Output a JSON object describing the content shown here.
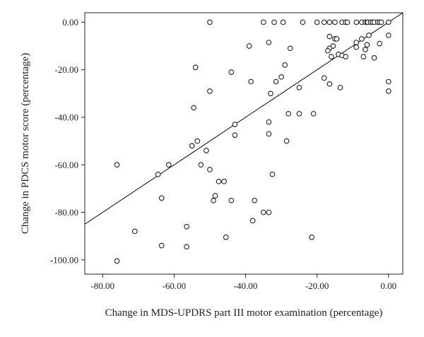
{
  "chart_data": {
    "type": "scatter",
    "title": "",
    "xlabel": "Change in MDS-UPDRS part III motor examination (percentage)",
    "ylabel": "Change in PDCS motor score (percentage)",
    "xlim": [
      -85,
      4
    ],
    "ylim": [
      -106,
      4
    ],
    "xticks": [
      -80,
      -60,
      -40,
      -20,
      0
    ],
    "xtick_labels": [
      "-80.00",
      "-60.00",
      "-40.00",
      "-20.00",
      "0.00"
    ],
    "yticks": [
      0,
      -20,
      -40,
      -60,
      -80,
      -100
    ],
    "ytick_labels": [
      "0.00",
      "-20.00",
      "-40.00",
      "-60.00",
      "-80.00",
      "-100.00"
    ],
    "grid": false,
    "reference_line": "identity (y = x)",
    "colors": {
      "marker": "#222222",
      "axis": "#222222",
      "line": "#000000"
    },
    "series": [
      {
        "marker": "open-circle",
        "points": [
          [
            -50,
            0
          ],
          [
            -35,
            0
          ],
          [
            -32,
            0
          ],
          [
            -29.5,
            0
          ],
          [
            -24,
            0
          ],
          [
            -20,
            0
          ],
          [
            -18,
            0
          ],
          [
            -16.5,
            0
          ],
          [
            -15,
            0
          ],
          [
            -13,
            0
          ],
          [
            -12,
            0
          ],
          [
            -11.5,
            0
          ],
          [
            -9,
            0
          ],
          [
            -7.5,
            0
          ],
          [
            -6.5,
            0
          ],
          [
            -6,
            0
          ],
          [
            -5.8,
            0
          ],
          [
            -5,
            0
          ],
          [
            -4.5,
            0
          ],
          [
            -4,
            0
          ],
          [
            -3,
            0
          ],
          [
            -2.5,
            0
          ],
          [
            -2,
            0
          ],
          [
            0,
            0
          ],
          [
            -16.5,
            -6
          ],
          [
            -15,
            -7
          ],
          [
            -14.5,
            -7
          ],
          [
            -7.5,
            -7
          ],
          [
            -9,
            -8.5
          ],
          [
            -5.5,
            -5.5
          ],
          [
            -2.5,
            -9
          ],
          [
            0,
            -5.5
          ],
          [
            -33.5,
            -8.5
          ],
          [
            -39,
            -10
          ],
          [
            -15.5,
            -10
          ],
          [
            -16.5,
            -11
          ],
          [
            -17,
            -12
          ],
          [
            -6,
            -9.5
          ],
          [
            -6.5,
            -11.5
          ],
          [
            -9,
            -10.5
          ],
          [
            -27.5,
            -11
          ],
          [
            -16,
            -14.5
          ],
          [
            -14,
            -13.5
          ],
          [
            -13,
            -14
          ],
          [
            -7,
            -14.5
          ],
          [
            -4,
            -15
          ],
          [
            -12,
            -14.5
          ],
          [
            -54,
            -19
          ],
          [
            -44,
            -21
          ],
          [
            -29,
            -18
          ],
          [
            -30,
            -23
          ],
          [
            -38.5,
            -25
          ],
          [
            -31.5,
            -25
          ],
          [
            -18,
            -23.5
          ],
          [
            -16.5,
            -26
          ],
          [
            -13.5,
            -27.5
          ],
          [
            -25,
            -27.5
          ],
          [
            -50,
            -29
          ],
          [
            0,
            -25
          ],
          [
            0,
            -29
          ],
          [
            -33,
            -30
          ],
          [
            -54.5,
            -36
          ],
          [
            -25,
            -38.5
          ],
          [
            -21,
            -38.5
          ],
          [
            -28,
            -38.5
          ],
          [
            -43,
            -43
          ],
          [
            -33.5,
            -42
          ],
          [
            -43,
            -47.5
          ],
          [
            -33.5,
            -47
          ],
          [
            -28.5,
            -50
          ],
          [
            -53.5,
            -50
          ],
          [
            -55,
            -52
          ],
          [
            -51,
            -54
          ],
          [
            -76,
            -60
          ],
          [
            -61.5,
            -60
          ],
          [
            -52.5,
            -60
          ],
          [
            -50,
            -62
          ],
          [
            -32.5,
            -64
          ],
          [
            -64.5,
            -64
          ],
          [
            -47.5,
            -67
          ],
          [
            -46,
            -67
          ],
          [
            -48.5,
            -73
          ],
          [
            -63.5,
            -74
          ],
          [
            -49,
            -75
          ],
          [
            -44,
            -75
          ],
          [
            -37.5,
            -75
          ],
          [
            -35,
            -80
          ],
          [
            -33.5,
            -80
          ],
          [
            -38,
            -83.5
          ],
          [
            -56.5,
            -86
          ],
          [
            -71,
            -88
          ],
          [
            -45.5,
            -90.5
          ],
          [
            -21.5,
            -90.5
          ],
          [
            -63.5,
            -94
          ],
          [
            -56.5,
            -94.5
          ],
          [
            -76,
            -100.5
          ]
        ]
      }
    ]
  }
}
